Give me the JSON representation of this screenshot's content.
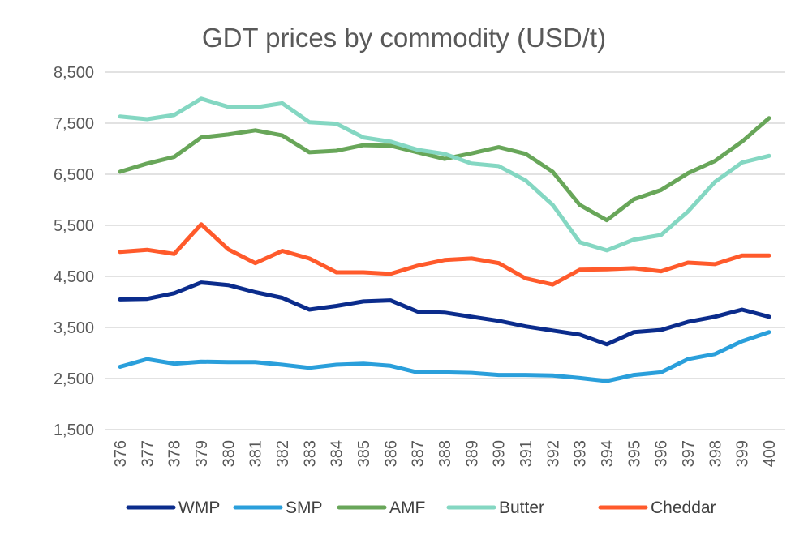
{
  "chart_data": {
    "type": "line",
    "title": "GDT prices by commodity (USD/t)",
    "xlabel": "",
    "ylabel": "",
    "x": [
      376,
      377,
      378,
      379,
      380,
      381,
      382,
      383,
      384,
      385,
      386,
      387,
      388,
      389,
      390,
      391,
      392,
      393,
      394,
      395,
      396,
      397,
      398,
      399,
      400
    ],
    "ylim": [
      1500,
      8500
    ],
    "yticks": [
      1500,
      2500,
      3500,
      4500,
      5500,
      6500,
      7500,
      8500
    ],
    "ytick_labels": [
      "1,500",
      "2,500",
      "3,500",
      "4,500",
      "5,500",
      "6,500",
      "7,500",
      "8,500"
    ],
    "grid": "horizontal",
    "legend_position": "bottom",
    "series": [
      {
        "name": "WMP",
        "color": "#0B2C8C",
        "values": [
          4050,
          4060,
          4170,
          4380,
          4330,
          4190,
          4080,
          3850,
          3920,
          4010,
          4030,
          3810,
          3790,
          3710,
          3630,
          3520,
          3440,
          3360,
          3170,
          3410,
          3450,
          3610,
          3710,
          3850,
          3710
        ]
      },
      {
        "name": "SMP",
        "color": "#2A9FDB",
        "values": [
          2730,
          2880,
          2790,
          2830,
          2820,
          2820,
          2770,
          2710,
          2770,
          2790,
          2750,
          2620,
          2620,
          2610,
          2570,
          2570,
          2560,
          2510,
          2450,
          2570,
          2620,
          2880,
          2980,
          3230,
          3410
        ]
      },
      {
        "name": "AMF",
        "color": "#68A659",
        "values": [
          6550,
          6710,
          6840,
          7220,
          7280,
          7360,
          7260,
          6930,
          6960,
          7070,
          7060,
          6930,
          6800,
          6910,
          7030,
          6900,
          6550,
          5900,
          5600,
          6010,
          6190,
          6520,
          6760,
          7140,
          7600
        ]
      },
      {
        "name": "Butter",
        "color": "#84D7C2",
        "values": [
          7630,
          7580,
          7660,
          7980,
          7820,
          7810,
          7890,
          7520,
          7490,
          7220,
          7140,
          6980,
          6900,
          6710,
          6660,
          6380,
          5900,
          5170,
          5010,
          5220,
          5310,
          5770,
          6350,
          6730,
          6860
        ]
      },
      {
        "name": "Cheddar",
        "color": "#FF5A2B",
        "values": [
          4980,
          5020,
          4940,
          5520,
          5030,
          4760,
          5000,
          4850,
          4580,
          4580,
          4550,
          4710,
          4820,
          4850,
          4760,
          4460,
          4340,
          4630,
          4640,
          4660,
          4600,
          4770,
          4740,
          4910,
          4910
        ]
      }
    ]
  }
}
